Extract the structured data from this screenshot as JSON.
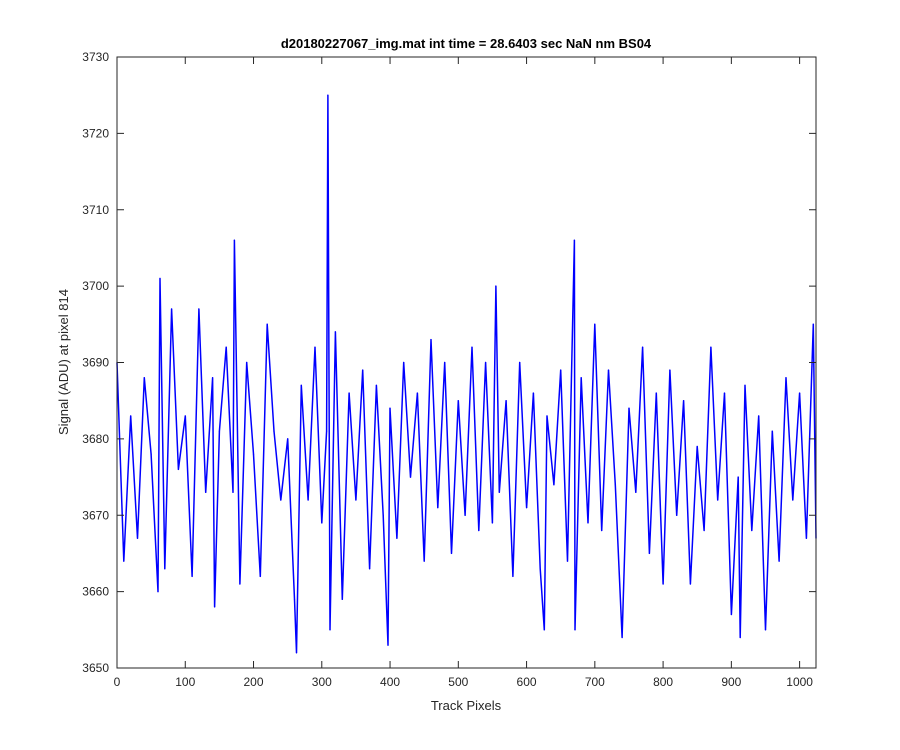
{
  "chart_data": {
    "type": "line",
    "title": "d20180227067_img.mat int time = 28.6403 sec  NaN nm BS04",
    "xlabel": "Track Pixels",
    "ylabel": "Signal (ADU) at pixel 814",
    "xlim": [
      0,
      1024
    ],
    "ylim": [
      3650,
      3730
    ],
    "xticks": [
      0,
      100,
      200,
      300,
      400,
      500,
      600,
      700,
      800,
      900,
      1000
    ],
    "yticks": [
      3650,
      3660,
      3670,
      3680,
      3690,
      3700,
      3710,
      3720,
      3730
    ],
    "grid": false,
    "legend": "none",
    "series": [
      {
        "color": "#0000ff",
        "x": [
          0,
          10,
          20,
          30,
          40,
          50,
          60,
          63,
          70,
          80,
          90,
          100,
          110,
          120,
          130,
          140,
          143,
          150,
          160,
          170,
          172,
          180,
          190,
          200,
          210,
          220,
          230,
          240,
          250,
          260,
          263,
          270,
          280,
          290,
          300,
          307,
          309,
          312,
          320,
          330,
          340,
          350,
          360,
          370,
          380,
          390,
          397,
          400,
          410,
          420,
          430,
          440,
          450,
          460,
          470,
          480,
          490,
          500,
          510,
          520,
          530,
          540,
          550,
          555,
          560,
          570,
          580,
          590,
          600,
          610,
          620,
          626,
          630,
          640,
          650,
          660,
          670,
          671,
          680,
          690,
          700,
          710,
          720,
          730,
          740,
          750,
          760,
          770,
          780,
          790,
          800,
          810,
          820,
          830,
          840,
          850,
          860,
          870,
          880,
          890,
          900,
          910,
          913,
          920,
          930,
          940,
          950,
          960,
          970,
          980,
          990,
          1000,
          1010,
          1020,
          1024
        ],
        "y": [
          3690,
          3664,
          3683,
          3667,
          3688,
          3678,
          3660,
          3701,
          3663,
          3697,
          3676,
          3683,
          3662,
          3697,
          3673,
          3688,
          3658,
          3681,
          3692,
          3673,
          3706,
          3661,
          3690,
          3678,
          3662,
          3695,
          3681,
          3672,
          3680,
          3659,
          3652,
          3687,
          3672,
          3692,
          3669,
          3681,
          3725,
          3655,
          3694,
          3659,
          3686,
          3672,
          3689,
          3663,
          3687,
          3670,
          3653,
          3684,
          3667,
          3690,
          3675,
          3686,
          3664,
          3693,
          3671,
          3690,
          3665,
          3685,
          3670,
          3692,
          3668,
          3690,
          3669,
          3700,
          3673,
          3685,
          3662,
          3690,
          3671,
          3686,
          3663,
          3655,
          3683,
          3674,
          3689,
          3664,
          3706,
          3655,
          3688,
          3669,
          3695,
          3668,
          3689,
          3674,
          3654,
          3684,
          3673,
          3692,
          3665,
          3686,
          3661,
          3689,
          3670,
          3685,
          3661,
          3679,
          3668,
          3692,
          3672,
          3686,
          3657,
          3675,
          3654,
          3687,
          3668,
          3683,
          3655,
          3681,
          3664,
          3688,
          3672,
          3686,
          3667,
          3695,
          3667
        ]
      }
    ]
  }
}
